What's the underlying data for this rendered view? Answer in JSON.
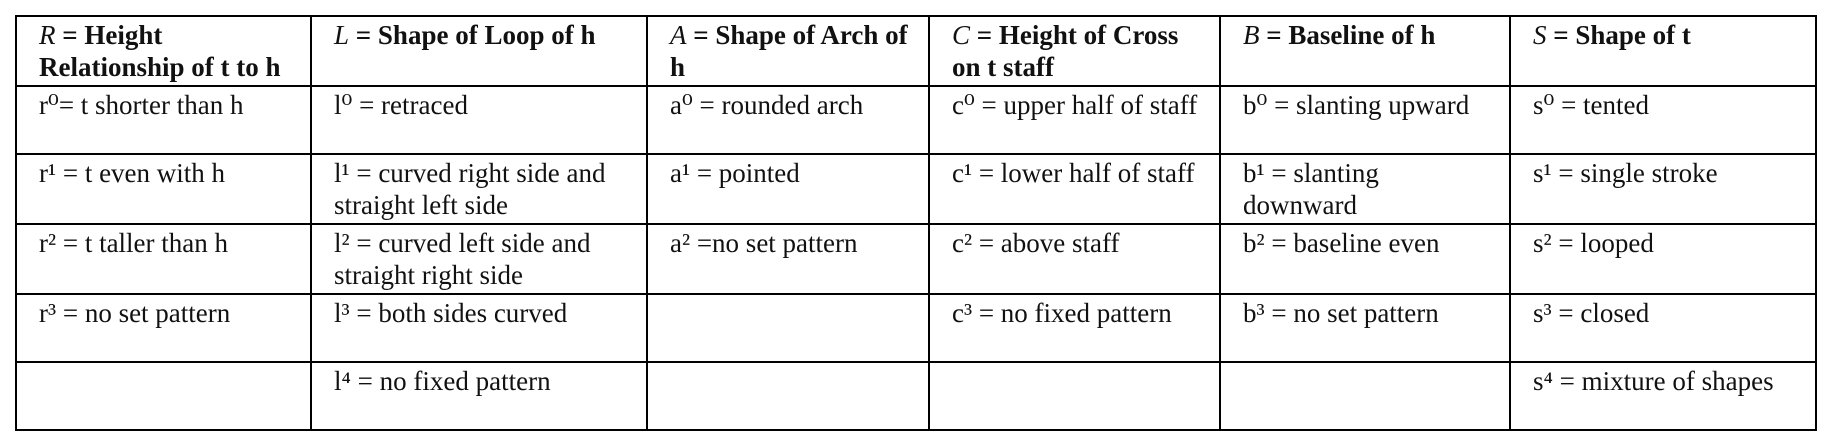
{
  "headers": [
    {
      "sym": "R",
      "text": " = Height Relationship of t to h"
    },
    {
      "sym": "L",
      "text": " = Shape of Loop of h"
    },
    {
      "sym": "A",
      "text": " = Shape of Arch of h"
    },
    {
      "sym": "C",
      "text": " = Height of Cross on t staff"
    },
    {
      "sym": "B",
      "text": " = Baseline of h"
    },
    {
      "sym": "S",
      "text": " = Shape of t"
    }
  ],
  "rows": [
    [
      "r⁰= t shorter than h",
      "l⁰ = retraced",
      "a⁰ = rounded arch",
      "c⁰ = upper half of staff",
      "b⁰ = slanting upward",
      "s⁰ = tented"
    ],
    [
      "r¹ = t even with h",
      "l¹ = curved right side and straight left side",
      "a¹ = pointed",
      "c¹ = lower half of staff",
      "b¹ = slanting downward",
      "s¹ = single stroke"
    ],
    [
      "r² = t taller than h",
      "l² = curved left side and straight right side",
      "a² =no set pattern",
      "c² = above staff",
      "b² = baseline even",
      "s² = looped"
    ],
    [
      "r³ = no set pattern",
      "l³ = both sides curved",
      "",
      "c³ = no fixed pattern",
      "b³ = no set pattern",
      "s³ = closed"
    ],
    [
      "",
      "l⁴ = no fixed pattern",
      "",
      "",
      "",
      "s⁴ = mixture of shapes"
    ]
  ]
}
